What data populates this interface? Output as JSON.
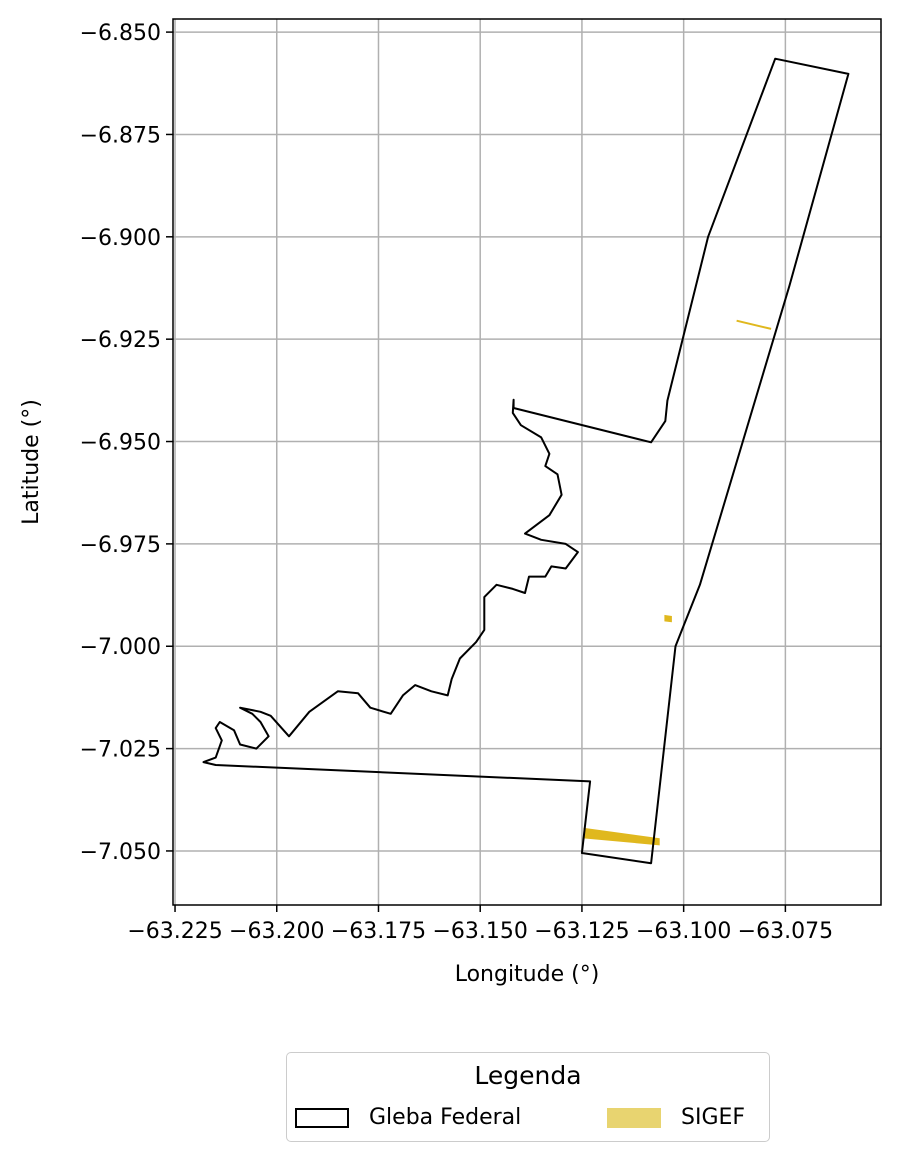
{
  "chart_data": {
    "type": "map",
    "xlabel": "Longitude (°)",
    "ylabel": "Latitude (°)",
    "xlim": [
      -63.2255,
      -63.0515
    ],
    "ylim": [
      -7.0632,
      -6.8468
    ],
    "grid": true,
    "x_ticks": [
      -63.225,
      -63.2,
      -63.175,
      -63.15,
      -63.125,
      -63.1,
      -63.075
    ],
    "x_tick_labels": [
      "−63.225",
      "−63.200",
      "−63.175",
      "−63.150",
      "−63.125",
      "−63.100",
      "−63.075"
    ],
    "y_ticks": [
      -6.85,
      -6.875,
      -6.9,
      -6.925,
      -6.95,
      -6.975,
      -7.0,
      -7.025,
      -7.05
    ],
    "y_tick_labels": [
      "−6.850",
      "−6.875",
      "−6.900",
      "−6.925",
      "−6.950",
      "−6.975",
      "−7.000",
      "−7.025",
      "−7.050"
    ],
    "gleba_federal": [
      [
        -63.1418,
        -6.9398
      ],
      [
        -63.1418,
        -6.9418
      ],
      [
        -63.108,
        -6.9502
      ],
      [
        -63.1045,
        -6.945
      ],
      [
        -63.104,
        -6.94
      ],
      [
        -63.094,
        -6.9
      ],
      [
        -63.0775,
        -6.8565
      ],
      [
        -63.0595,
        -6.8602
      ],
      [
        -63.074,
        -6.912
      ],
      [
        -63.096,
        -6.985
      ],
      [
        -63.102,
        -7.0
      ],
      [
        -63.108,
        -7.053
      ],
      [
        -63.125,
        -7.0505
      ],
      [
        -63.123,
        -7.033
      ],
      [
        -63.215,
        -7.029
      ],
      [
        -63.218,
        -7.0283
      ],
      [
        -63.215,
        -7.0272
      ],
      [
        -63.2135,
        -7.023
      ],
      [
        -63.215,
        -7.02
      ],
      [
        -63.214,
        -7.0185
      ],
      [
        -63.2105,
        -7.0205
      ],
      [
        -63.209,
        -7.024
      ],
      [
        -63.205,
        -7.025
      ],
      [
        -63.202,
        -7.022
      ],
      [
        -63.204,
        -7.0185
      ],
      [
        -63.206,
        -7.0165
      ],
      [
        -63.209,
        -7.015
      ],
      [
        -63.204,
        -7.016
      ],
      [
        -63.2015,
        -7.017
      ],
      [
        -63.197,
        -7.022
      ],
      [
        -63.192,
        -7.016
      ],
      [
        -63.185,
        -7.011
      ],
      [
        -63.18,
        -7.0115
      ],
      [
        -63.177,
        -7.015
      ],
      [
        -63.172,
        -7.0165
      ],
      [
        -63.169,
        -7.012
      ],
      [
        -63.166,
        -7.0095
      ],
      [
        -63.162,
        -7.011
      ],
      [
        -63.158,
        -7.012
      ],
      [
        -63.157,
        -7.008
      ],
      [
        -63.155,
        -7.003
      ],
      [
        -63.151,
        -6.999
      ],
      [
        -63.149,
        -6.996
      ],
      [
        -63.149,
        -6.988
      ],
      [
        -63.146,
        -6.985
      ],
      [
        -63.142,
        -6.986
      ],
      [
        -63.139,
        -6.987
      ],
      [
        -63.138,
        -6.983
      ],
      [
        -63.134,
        -6.983
      ],
      [
        -63.1325,
        -6.9805
      ],
      [
        -63.129,
        -6.981
      ],
      [
        -63.126,
        -6.977
      ],
      [
        -63.129,
        -6.975
      ],
      [
        -63.135,
        -6.974
      ],
      [
        -63.139,
        -6.9725
      ],
      [
        -63.133,
        -6.968
      ],
      [
        -63.13,
        -6.963
      ],
      [
        -63.131,
        -6.958
      ],
      [
        -63.134,
        -6.956
      ],
      [
        -63.133,
        -6.953
      ],
      [
        -63.135,
        -6.949
      ],
      [
        -63.14,
        -6.946
      ],
      [
        -63.142,
        -6.943
      ],
      [
        -63.1418,
        -6.9398
      ]
    ],
    "sigef": [
      {
        "type": "polygon",
        "points": [
          [
            -63.1245,
            -7.0445
          ],
          [
            -63.106,
            -7.047
          ],
          [
            -63.106,
            -7.0485
          ],
          [
            -63.1245,
            -7.0468
          ]
        ]
      },
      {
        "type": "polygon",
        "points": [
          [
            -63.1046,
            -6.9925
          ],
          [
            -63.103,
            -6.9927
          ],
          [
            -63.103,
            -6.994
          ],
          [
            -63.1046,
            -6.9938
          ]
        ]
      },
      {
        "type": "line",
        "points": [
          [
            -63.087,
            -6.9205
          ],
          [
            -63.0785,
            -6.9225
          ]
        ]
      }
    ],
    "colors": {
      "gleba_federal": "#000000",
      "sigef": "#e0b81e",
      "grid": "#b0b0b0"
    }
  },
  "legend": {
    "title": "Legenda",
    "items": [
      {
        "label": "Gleba Federal"
      },
      {
        "label": "SIGEF"
      }
    ]
  }
}
